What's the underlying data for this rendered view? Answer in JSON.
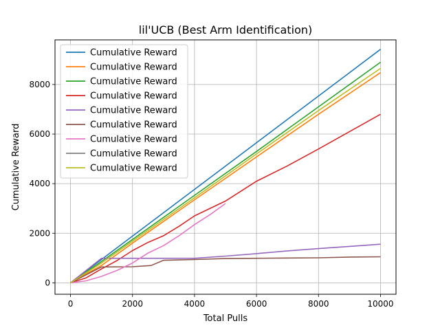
{
  "chart_data": {
    "type": "line",
    "title": "lil'UCB (Best Arm Identification)",
    "xlabel": "Total Pulls",
    "ylabel": "Cumulative Reward",
    "xlim": [
      -500,
      10500
    ],
    "ylim": [
      -460,
      9800
    ],
    "xticks": [
      0,
      2000,
      4000,
      6000,
      8000,
      10000
    ],
    "yticks": [
      0,
      2000,
      4000,
      6000,
      8000
    ],
    "grid": true,
    "legend_position": "upper-left",
    "series": [
      {
        "name": "Cumulative Reward",
        "color": "#1f77b4",
        "points": [
          [
            0,
            0
          ],
          [
            10000,
            9420
          ]
        ]
      },
      {
        "name": "Cumulative Reward",
        "color": "#ff7f0e",
        "points": [
          [
            0,
            0
          ],
          [
            1000,
            700
          ],
          [
            2000,
            1600
          ],
          [
            4000,
            3350
          ],
          [
            6000,
            5080
          ],
          [
            8000,
            6800
          ],
          [
            10000,
            8480
          ]
        ]
      },
      {
        "name": "Cumulative Reward",
        "color": "#2ca02c",
        "points": [
          [
            0,
            0
          ],
          [
            1000,
            860
          ],
          [
            2000,
            1750
          ],
          [
            4000,
            3530
          ],
          [
            6000,
            5300
          ],
          [
            8000,
            7100
          ],
          [
            10000,
            8900
          ]
        ]
      },
      {
        "name": "Cumulative Reward",
        "color": "#d62728",
        "points": [
          [
            0,
            0
          ],
          [
            500,
            200
          ],
          [
            1000,
            560
          ],
          [
            1500,
            900
          ],
          [
            2000,
            1300
          ],
          [
            2500,
            1630
          ],
          [
            3000,
            1900
          ],
          [
            3500,
            2280
          ],
          [
            4000,
            2700
          ],
          [
            5000,
            3300
          ],
          [
            6000,
            4100
          ],
          [
            7000,
            4720
          ],
          [
            8000,
            5400
          ],
          [
            9000,
            6100
          ],
          [
            10000,
            6800
          ]
        ]
      },
      {
        "name": "Cumulative Reward",
        "color": "#9467bd",
        "points": [
          [
            0,
            0
          ],
          [
            1000,
            990
          ],
          [
            2000,
            990
          ],
          [
            3000,
            990
          ],
          [
            4000,
            990
          ],
          [
            5000,
            1080
          ],
          [
            6000,
            1180
          ],
          [
            7000,
            1290
          ],
          [
            8000,
            1380
          ],
          [
            9000,
            1470
          ],
          [
            10000,
            1560
          ]
        ]
      },
      {
        "name": "Cumulative Reward",
        "color": "#8c564b",
        "points": [
          [
            0,
            0
          ],
          [
            1000,
            640
          ],
          [
            2000,
            650
          ],
          [
            2600,
            700
          ],
          [
            3000,
            910
          ],
          [
            4000,
            940
          ],
          [
            5000,
            980
          ],
          [
            6000,
            990
          ],
          [
            7000,
            1000
          ],
          [
            8000,
            1010
          ],
          [
            9000,
            1040
          ],
          [
            10000,
            1050
          ]
        ]
      },
      {
        "name": "Cumulative Reward",
        "color": "#e377c2",
        "points": [
          [
            0,
            0
          ],
          [
            500,
            80
          ],
          [
            1000,
            260
          ],
          [
            1500,
            500
          ],
          [
            2000,
            800
          ],
          [
            2500,
            1200
          ],
          [
            3000,
            1500
          ],
          [
            3500,
            1900
          ],
          [
            4000,
            2350
          ],
          [
            4500,
            2750
          ],
          [
            5000,
            3200
          ]
        ]
      },
      {
        "name": "Cumulative Reward",
        "color": "#7f7f7f",
        "points": []
      },
      {
        "name": "Cumulative Reward",
        "color": "#bcbd22",
        "points": [
          [
            0,
            0
          ],
          [
            1000,
            800
          ],
          [
            2000,
            1680
          ],
          [
            4000,
            3430
          ],
          [
            6000,
            5200
          ],
          [
            8000,
            6950
          ],
          [
            10000,
            8650
          ]
        ]
      }
    ]
  }
}
